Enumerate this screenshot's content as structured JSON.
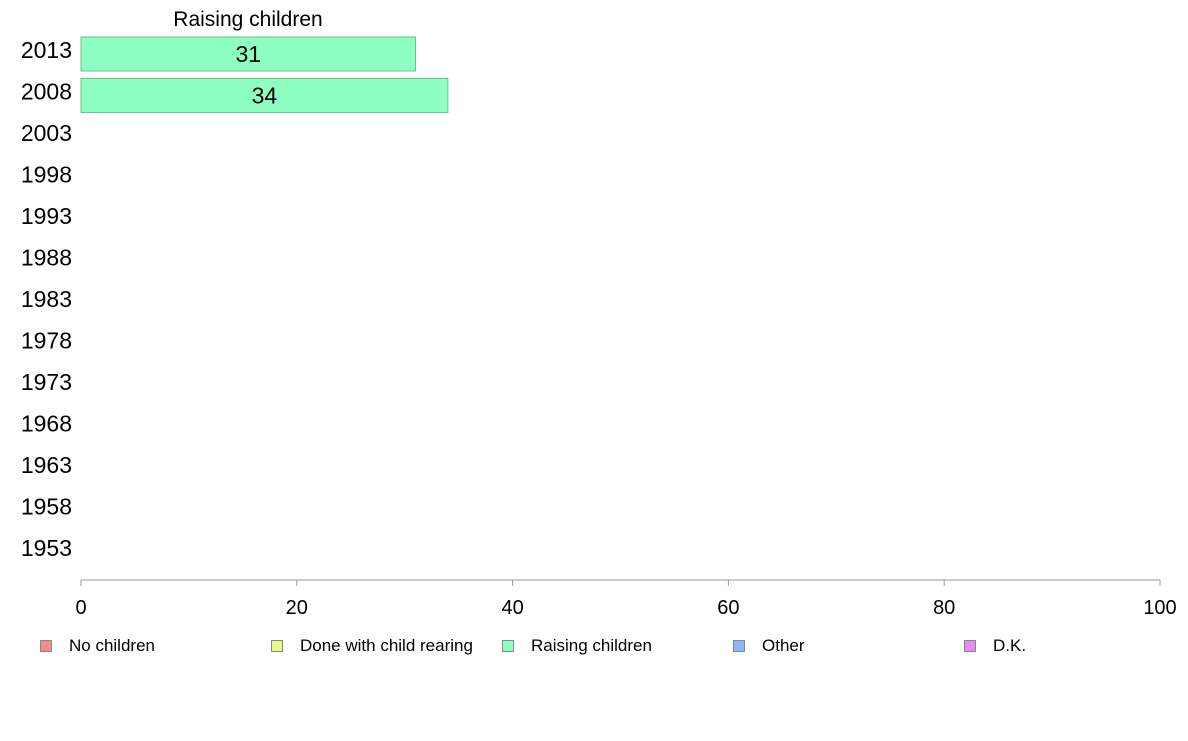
{
  "chart_data": {
    "type": "bar",
    "orientation": "horizontal",
    "title": "Raising children",
    "categories": [
      "2013",
      "2008",
      "2003",
      "1998",
      "1993",
      "1988",
      "1983",
      "1978",
      "1973",
      "1968",
      "1963",
      "1958",
      "1953"
    ],
    "series": [
      {
        "name": "Raising children",
        "color": "#8dffc0",
        "values": [
          31,
          34,
          null,
          null,
          null,
          null,
          null,
          null,
          null,
          null,
          null,
          null,
          null
        ]
      }
    ],
    "xlim": [
      0,
      100
    ],
    "xticks": [
      0,
      20,
      40,
      60,
      80,
      100
    ],
    "grid": false,
    "legend_placement": "bottom"
  },
  "legend": {
    "items": [
      {
        "label": "No children",
        "color": "#f88a8a"
      },
      {
        "label": "Done with child rearing",
        "color": "#e8fa8a"
      },
      {
        "label": "Raising children",
        "color": "#8dffc0"
      },
      {
        "label": "Other",
        "color": "#8ab8f8"
      },
      {
        "label": "D.K.",
        "color": "#ea88f4"
      }
    ]
  }
}
